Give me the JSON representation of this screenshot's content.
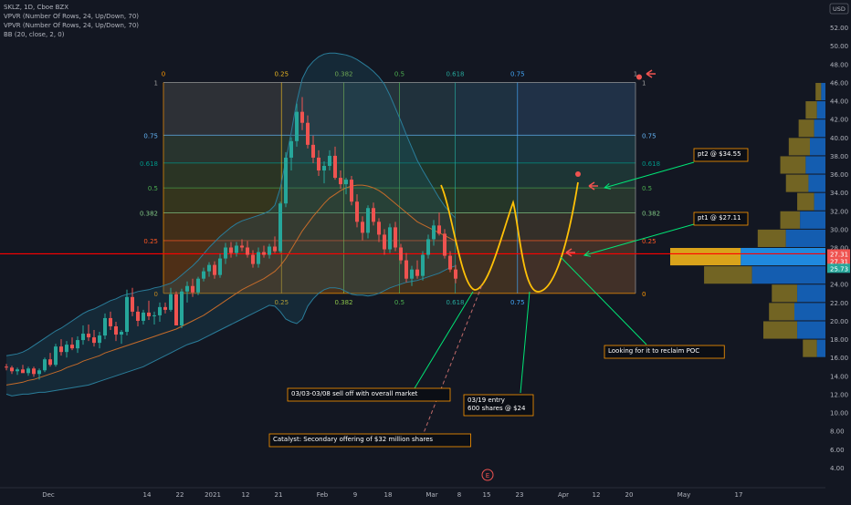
{
  "header": {
    "symbol_line": "SKLZ, 1D, Cboe BZX",
    "indicators": [
      "VPVR (Number Of Rows, 24, Up/Down, 70)",
      "VPVR (Number Of Rows, 24, Up/Down, 70)",
      "BB (20, close, 2, 0)"
    ],
    "currency": "USD"
  },
  "colors": {
    "background": "#131722",
    "up": "#26a69a",
    "down": "#ef5350",
    "poc_line": "#ff0000",
    "annotation": "#ff9800",
    "callout_line": "#00e676",
    "projection": "#ffc107",
    "bb_fill": "#1e5a70",
    "vpvr_up": "#2196f3",
    "vpvr_down": "#f0b21b",
    "vpvr_alt_up": "#1565c0",
    "vpvr_alt_down": "#7d6d24"
  },
  "chart_data": {
    "type": "candlestick",
    "price_axis": {
      "min": 2.0,
      "max": 54.0,
      "ticks": [
        "52.00",
        "50.00",
        "48.00",
        "46.00",
        "44.00",
        "42.00",
        "40.00",
        "38.00",
        "36.00",
        "34.00",
        "32.00",
        "30.00",
        "28.00",
        "26.00",
        "24.00",
        "22.00",
        "20.00",
        "18.00",
        "16.00",
        "14.00",
        "12.00",
        "10.00",
        "8.00",
        "6.00",
        "4.00"
      ],
      "price_labels": [
        {
          "text": "27.31",
          "price": 27.31,
          "color": "#ef5350"
        },
        {
          "text": "27.31",
          "price": 26.5,
          "color": "#ef5350"
        },
        {
          "text": "25.73",
          "price": 25.73,
          "color": "#26a69a"
        }
      ]
    },
    "time_axis": {
      "labels": [
        {
          "text": "Dec",
          "idx": 0
        },
        {
          "text": "14",
          "idx": 18
        },
        {
          "text": "22",
          "idx": 24
        },
        {
          "text": "2021",
          "idx": 30
        },
        {
          "text": "12",
          "idx": 36
        },
        {
          "text": "21",
          "idx": 42
        },
        {
          "text": "Feb",
          "idx": 50
        },
        {
          "text": "9",
          "idx": 56
        },
        {
          "text": "18",
          "idx": 62
        },
        {
          "text": "Mar",
          "idx": 70
        },
        {
          "text": "8",
          "idx": 75
        },
        {
          "text": "15",
          "idx": 80
        },
        {
          "text": "23",
          "idx": 86
        },
        {
          "text": "Apr",
          "idx": 94
        },
        {
          "text": "12",
          "idx": 100
        },
        {
          "text": "20",
          "idx": 106
        },
        {
          "text": "May",
          "idx": 116
        },
        {
          "text": "17",
          "idx": 126
        }
      ]
    },
    "candles": [
      [
        15.0,
        15.3,
        14.6,
        14.9
      ],
      [
        14.9,
        15.1,
        14.2,
        14.5
      ],
      [
        14.5,
        14.9,
        14.1,
        14.7
      ],
      [
        14.7,
        15.2,
        14.4,
        14.3
      ],
      [
        14.3,
        15.0,
        14.0,
        14.8
      ],
      [
        14.8,
        15.0,
        13.9,
        14.2
      ],
      [
        14.2,
        14.8,
        13.6,
        14.6
      ],
      [
        14.6,
        16.0,
        14.4,
        15.8
      ],
      [
        15.8,
        16.5,
        15.0,
        15.2
      ],
      [
        15.2,
        17.5,
        15.0,
        17.2
      ],
      [
        17.2,
        18.0,
        16.2,
        16.6
      ],
      [
        16.6,
        17.8,
        16.0,
        17.4
      ],
      [
        17.4,
        18.2,
        16.8,
        17.0
      ],
      [
        17.0,
        18.3,
        16.5,
        17.9
      ],
      [
        17.9,
        19.5,
        17.4,
        18.6
      ],
      [
        18.6,
        19.6,
        17.8,
        18.2
      ],
      [
        18.2,
        19.0,
        17.2,
        17.6
      ],
      [
        17.6,
        18.8,
        17.0,
        18.4
      ],
      [
        18.4,
        20.8,
        18.0,
        20.3
      ],
      [
        20.3,
        21.0,
        19.0,
        19.4
      ],
      [
        19.4,
        19.9,
        17.8,
        18.5
      ],
      [
        18.5,
        19.0,
        17.5,
        18.8
      ],
      [
        18.8,
        23.4,
        18.4,
        22.6
      ],
      [
        22.6,
        23.6,
        20.5,
        21.0
      ],
      [
        21.0,
        21.6,
        19.4,
        20.0
      ],
      [
        20.0,
        21.2,
        19.6,
        20.9
      ],
      [
        20.9,
        22.2,
        20.1,
        20.5
      ],
      [
        20.5,
        21.0,
        19.6,
        20.6
      ],
      [
        20.6,
        22.0,
        19.9,
        21.5
      ],
      [
        21.5,
        22.0,
        20.8,
        21.2
      ],
      [
        21.2,
        23.6,
        21.0,
        22.9
      ],
      [
        22.9,
        23.2,
        19.8,
        19.5
      ],
      [
        19.5,
        23.5,
        19.2,
        23.2
      ],
      [
        23.2,
        24.3,
        22.0,
        23.8
      ],
      [
        23.8,
        24.6,
        22.6,
        23.1
      ],
      [
        23.1,
        24.8,
        22.8,
        24.6
      ],
      [
        24.6,
        25.8,
        24.3,
        25.4
      ],
      [
        25.4,
        26.4,
        24.8,
        26.1
      ],
      [
        26.1,
        26.5,
        24.6,
        25.0
      ],
      [
        25.0,
        27.3,
        24.7,
        26.8
      ],
      [
        26.8,
        28.5,
        26.2,
        28.0
      ],
      [
        28.0,
        28.6,
        26.9,
        27.4
      ],
      [
        27.4,
        28.6,
        27.0,
        28.2
      ],
      [
        28.2,
        28.9,
        27.6,
        28.0
      ],
      [
        28.0,
        28.7,
        26.9,
        27.2
      ],
      [
        27.2,
        27.7,
        25.8,
        26.2
      ],
      [
        26.2,
        28.0,
        25.8,
        27.5
      ],
      [
        27.5,
        28.2,
        26.9,
        27.2
      ],
      [
        27.2,
        28.4,
        26.8,
        28.1
      ],
      [
        28.1,
        29.2,
        27.4,
        27.6
      ],
      [
        27.6,
        33.0,
        27.4,
        32.8
      ],
      [
        32.8,
        38.4,
        32.4,
        37.8
      ],
      [
        37.8,
        40.0,
        36.4,
        39.6
      ],
      [
        39.6,
        43.7,
        39.0,
        42.8
      ],
      [
        42.8,
        44.4,
        40.8,
        41.6
      ],
      [
        41.6,
        42.4,
        38.8,
        39.2
      ],
      [
        39.2,
        40.2,
        37.2,
        37.8
      ],
      [
        37.8,
        38.6,
        35.8,
        36.4
      ],
      [
        36.4,
        37.4,
        35.0,
        36.9
      ],
      [
        36.9,
        38.6,
        36.4,
        38.0
      ],
      [
        38.0,
        39.0,
        35.4,
        35.6
      ],
      [
        35.6,
        36.4,
        34.4,
        34.9
      ],
      [
        34.9,
        35.6,
        33.8,
        35.4
      ],
      [
        35.4,
        35.8,
        32.6,
        33.0
      ],
      [
        33.0,
        33.8,
        30.2,
        30.8
      ],
      [
        30.8,
        31.4,
        28.8,
        29.6
      ],
      [
        29.6,
        32.6,
        29.0,
        32.3
      ],
      [
        32.3,
        32.9,
        30.4,
        30.8
      ],
      [
        30.8,
        31.2,
        28.6,
        29.4
      ],
      [
        29.4,
        30.0,
        27.2,
        27.8
      ],
      [
        27.8,
        30.6,
        27.4,
        30.2
      ],
      [
        30.2,
        30.8,
        27.6,
        28.0
      ],
      [
        28.0,
        28.4,
        26.2,
        26.6
      ],
      [
        26.6,
        27.4,
        24.2,
        24.6
      ],
      [
        24.6,
        26.0,
        23.8,
        25.6
      ],
      [
        25.6,
        26.6,
        24.6,
        24.9
      ],
      [
        24.9,
        27.6,
        24.4,
        27.2
      ],
      [
        27.2,
        29.4,
        26.8,
        28.9
      ],
      [
        28.9,
        31.0,
        28.2,
        30.4
      ],
      [
        30.4,
        31.8,
        29.3,
        29.5
      ],
      [
        29.5,
        30.0,
        26.8,
        27.1
      ],
      [
        27.1,
        27.6,
        25.3,
        25.6
      ],
      [
        25.6,
        26.1,
        24.1,
        24.6
      ]
    ],
    "bollinger": {
      "upper": [
        16.2,
        16.3,
        16.4,
        16.6,
        16.9,
        17.3,
        17.7,
        18.1,
        18.5,
        18.9,
        19.2,
        19.6,
        20.0,
        20.4,
        20.8,
        21.1,
        21.3,
        21.6,
        21.9,
        22.2,
        22.4,
        22.7,
        22.9,
        23.0,
        23.2,
        23.3,
        23.4,
        23.6,
        23.7,
        23.9,
        24.1,
        24.5,
        25.0,
        25.5,
        26.0,
        26.6,
        27.3,
        28.0,
        28.6,
        29.2,
        29.7,
        30.2,
        30.6,
        30.9,
        31.1,
        31.3,
        31.5,
        31.7,
        32.0,
        32.6,
        34.5,
        37.5,
        40.6,
        43.9,
        46.4,
        47.6,
        48.3,
        48.8,
        49.1,
        49.2,
        49.2,
        49.1,
        49.0,
        48.8,
        48.5,
        48.1,
        47.7,
        47.2,
        46.6,
        45.8,
        44.6,
        43.2,
        41.8,
        40.3,
        38.9,
        37.5,
        36.4,
        35.4,
        34.4,
        33.4,
        32.5,
        31.8,
        31.2
      ],
      "basis": [
        13.0,
        13.1,
        13.2,
        13.3,
        13.5,
        13.6,
        13.8,
        14.0,
        14.2,
        14.4,
        14.6,
        14.9,
        15.1,
        15.3,
        15.6,
        15.8,
        16.0,
        16.2,
        16.5,
        16.7,
        16.9,
        17.1,
        17.3,
        17.5,
        17.7,
        17.9,
        18.1,
        18.3,
        18.5,
        18.7,
        18.9,
        19.1,
        19.4,
        19.7,
        20.0,
        20.3,
        20.6,
        21.0,
        21.4,
        21.8,
        22.2,
        22.6,
        23.0,
        23.4,
        23.7,
        24.0,
        24.3,
        24.6,
        25.0,
        25.4,
        26.0,
        26.8,
        27.8,
        28.8,
        29.8,
        30.6,
        31.4,
        32.1,
        32.8,
        33.4,
        33.8,
        34.2,
        34.5,
        34.7,
        34.8,
        34.8,
        34.7,
        34.5,
        34.2,
        33.8,
        33.3,
        32.8,
        32.3,
        31.8,
        31.3,
        30.8,
        30.5,
        30.2,
        29.9,
        29.6,
        29.3,
        29.0,
        28.7
      ],
      "lower": [
        12.0,
        11.8,
        11.9,
        12.0,
        12.0,
        12.1,
        12.2,
        12.2,
        12.3,
        12.4,
        12.5,
        12.6,
        12.7,
        12.8,
        12.9,
        13.0,
        13.2,
        13.4,
        13.6,
        13.8,
        14.0,
        14.2,
        14.4,
        14.6,
        14.8,
        15.0,
        15.3,
        15.6,
        15.9,
        16.2,
        16.5,
        16.8,
        17.1,
        17.4,
        17.6,
        17.8,
        18.1,
        18.4,
        18.7,
        19.0,
        19.3,
        19.6,
        19.9,
        20.2,
        20.5,
        20.8,
        21.1,
        21.4,
        21.7,
        21.6,
        21.0,
        20.2,
        19.9,
        19.7,
        20.2,
        21.6,
        22.4,
        23.0,
        23.4,
        23.6,
        23.6,
        23.5,
        23.2,
        22.9,
        22.8,
        22.8,
        22.7,
        22.8,
        23.0,
        23.3,
        23.6,
        23.8,
        24.0,
        24.2,
        24.3,
        24.4,
        24.6,
        24.8,
        25.0,
        25.2,
        25.5,
        25.8,
        26.0
      ]
    },
    "fib_retracement": {
      "low": 23.0,
      "high": 46.0,
      "levels": [
        {
          "ratio": 0,
          "label": "0",
          "color": "#ff9800"
        },
        {
          "ratio": 0.25,
          "label": "0.25",
          "color": "#ff5722"
        },
        {
          "ratio": 0.382,
          "label": "0.382",
          "color": "#81c784"
        },
        {
          "ratio": 0.5,
          "label": "0.5",
          "color": "#4caf50"
        },
        {
          "ratio": 0.618,
          "label": "0.618",
          "color": "#009688"
        },
        {
          "ratio": 0.75,
          "label": "0.75",
          "color": "#64b5f6"
        },
        {
          "ratio": 1,
          "label": "1",
          "color": "#9e9e9e"
        }
      ]
    },
    "fib_time_zones": {
      "start_idx": 32,
      "end_idx": 108,
      "labels": [
        "0",
        "0.25",
        "0.382",
        "0.5",
        "0.618",
        "0.75",
        "1"
      ]
    },
    "poc_price": 27.31,
    "volume_profile": {
      "row_height": 2.0,
      "rows": [
        {
          "price": 45.0,
          "up": 1.5,
          "down": 2.0
        },
        {
          "price": 43.0,
          "up": 3.0,
          "down": 4.0
        },
        {
          "price": 41.0,
          "up": 4.0,
          "down": 5.5
        },
        {
          "price": 39.0,
          "up": 5.5,
          "down": 7.5
        },
        {
          "price": 37.0,
          "up": 7.0,
          "down": 9.0
        },
        {
          "price": 35.0,
          "up": 6.0,
          "down": 8.0
        },
        {
          "price": 33.0,
          "up": 4.0,
          "down": 6.0
        },
        {
          "price": 31.0,
          "up": 9.0,
          "down": 7.0
        },
        {
          "price": 29.0,
          "up": 14.0,
          "down": 10.0
        },
        {
          "price": 27.0,
          "up": 30.0,
          "down": 25.0
        },
        {
          "price": 25.0,
          "up": 26.0,
          "down": 17.0
        },
        {
          "price": 23.0,
          "up": 10.0,
          "down": 9.0
        },
        {
          "price": 21.0,
          "up": 11.0,
          "down": 9.0
        },
        {
          "price": 19.0,
          "up": 10.0,
          "down": 12.0
        },
        {
          "price": 17.0,
          "up": 3.0,
          "down": 5.0
        }
      ]
    }
  },
  "annotations": {
    "pt2": "pt2 @ $34.55",
    "pt1": "pt1 @ $27.11",
    "reclaim": "Looking for it to reclaim POC",
    "selloff": "03/03-03/08 sell off with overall market",
    "entry_line1": "03/19 entry",
    "entry_line2": "600 shares @ $24",
    "catalyst": "Catalyst: Secondary offering of $32 million shares",
    "earnings_marker": "E"
  }
}
